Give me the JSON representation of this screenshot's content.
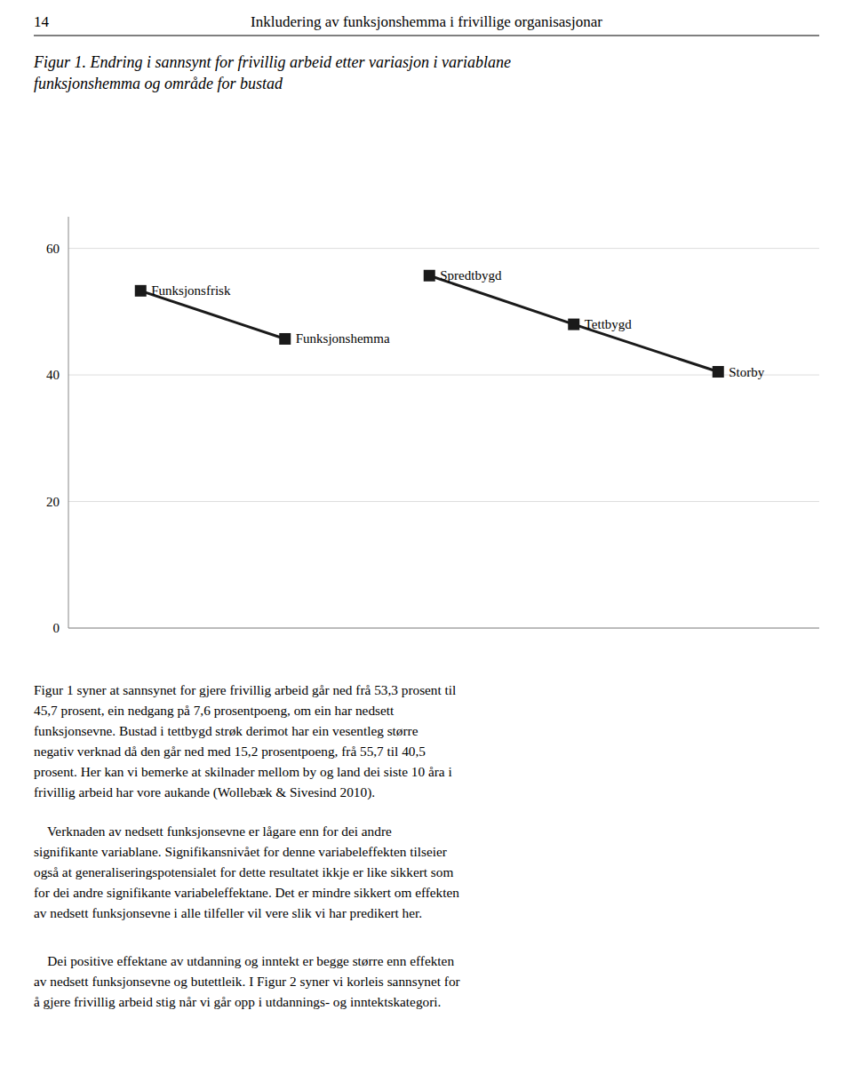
{
  "header": {
    "number": "14",
    "title": "Inkludering av funksjonshemma i frivillige organisasjonar"
  },
  "chart_data": {
    "type": "line",
    "title": "Figur 1. Endring i sannsynt for frivillig arbeid etter variasjon i variablane\nfunksjonshemma og område for bustad",
    "series": [
      {
        "x": [
          1,
          2
        ],
        "values": [
          53.3,
          45.7
        ],
        "annotations": [
          "Funksjonsfrisk",
          "Funksjonshemma"
        ],
        "color": "#1a1a1a",
        "marker": "square",
        "line_style": "solid"
      },
      {
        "x": [
          3,
          4,
          5
        ],
        "values": [
          55.7,
          48.0,
          40.5
        ],
        "annotations": [
          "Spredtbygd",
          "Tettbygd",
          "Storby"
        ],
        "color": "#1a1a1a",
        "marker": "square",
        "line_style": "solid"
      }
    ],
    "xlim": [
      0.5,
      5.7
    ],
    "xticks": [],
    "ylim": [
      0,
      65
    ],
    "yticks": [
      0,
      20,
      40,
      60
    ],
    "grid": true,
    "tick_labels": "y"
  },
  "body": [
    [
      "Figur 1 syner at sannsynet for gjere frivillig arbeid går ned frå 53,3 prosent til",
      "45,7 prosent, ein nedgang på 7,6 prosentpoeng, om ein har nedsett",
      "funksjonsevne. Bustad i tettbygd strøk derimot har ein vesentleg større",
      "negativ verknad då den går ned med 15,2 prosentpoeng, frå 55,7 til 40,5",
      "prosent. Her kan vi bemerke at skilnader mellom by og land dei siste 10 åra i",
      "frivillig arbeid har vore aukande (Wollebæk & Sivesind 2010)."
    ],
    [
      "    Verknaden av nedsett funksjonsevne er lågare enn for dei andre",
      "signifikante variablane. Signifikansnivået for denne variabeleffekten tilseier",
      "også at generaliseringspotensialet for dette resultatet ikkje er like sikkert som",
      "for dei andre signifikante variabeleffektane. Det er mindre sikkert om effekten",
      "av nedsett funksjonsevne i alle tilfeller vil vere slik vi har predikert her."
    ],
    [
      "    Dei positive effektane av utdanning og inntekt er begge større enn effekten",
      "av nedsett funksjonsevne og butettleik. I Figur 2 syner vi korleis sannsynet for",
      "å gjere frivillig arbeid stig når vi går opp i utdannings- og inntektskategori."
    ]
  ]
}
